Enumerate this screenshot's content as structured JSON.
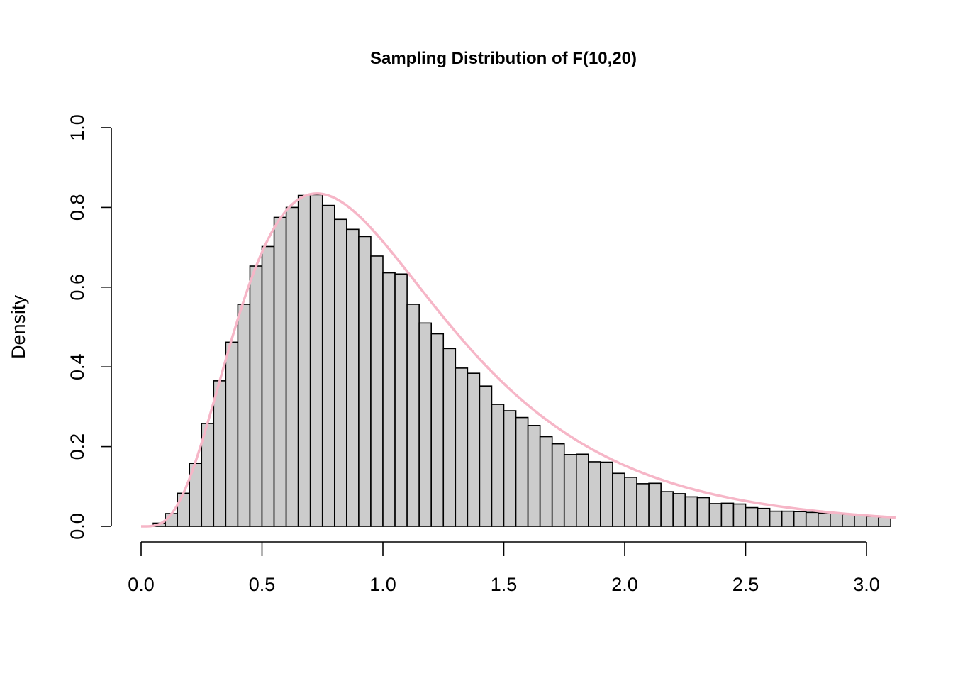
{
  "chart_data": {
    "type": "histogram",
    "title": "Sampling Distribution of F(10,20)",
    "xlabel": "",
    "ylabel": "Density",
    "xlim": [
      0,
      3.12
    ],
    "ylim": [
      0,
      1.0
    ],
    "x_ticks": [
      "0.0",
      "0.5",
      "1.0",
      "1.5",
      "2.0",
      "2.5",
      "3.0"
    ],
    "y_ticks": [
      "0.0",
      "0.2",
      "0.4",
      "0.6",
      "0.8",
      "1.0"
    ],
    "bin_width": 0.05,
    "bin_start": 0.0,
    "values": [
      0.0,
      0.008,
      0.032,
      0.083,
      0.158,
      0.258,
      0.365,
      0.462,
      0.557,
      0.653,
      0.702,
      0.775,
      0.8,
      0.83,
      0.832,
      0.805,
      0.77,
      0.745,
      0.727,
      0.678,
      0.636,
      0.633,
      0.557,
      0.51,
      0.483,
      0.446,
      0.397,
      0.384,
      0.352,
      0.306,
      0.29,
      0.273,
      0.253,
      0.225,
      0.207,
      0.18,
      0.181,
      0.162,
      0.161,
      0.133,
      0.123,
      0.107,
      0.108,
      0.087,
      0.082,
      0.074,
      0.072,
      0.057,
      0.058,
      0.056,
      0.047,
      0.045,
      0.038,
      0.038,
      0.037,
      0.035,
      0.033,
      0.032,
      0.03,
      0.027,
      0.025,
      0.023
    ],
    "density_curve": {
      "distribution": "F",
      "df1": 10,
      "df2": 20,
      "color": "#f6b6c7"
    },
    "bar_fill": "#cccccc",
    "bar_stroke": "#000000",
    "grid": false
  }
}
